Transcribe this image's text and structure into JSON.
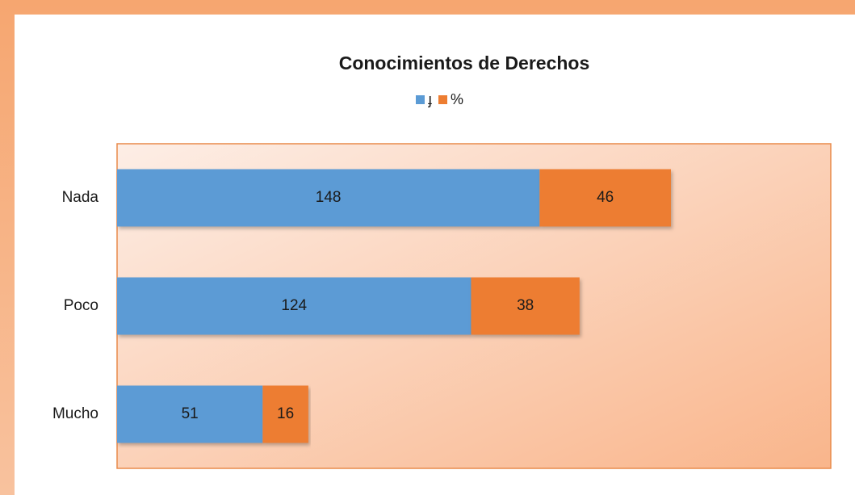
{
  "chart_data": {
    "type": "stacked-bar-horizontal",
    "title": "Conocimientos de Derechos",
    "categories": [
      "Nada",
      "Poco",
      "Mucho"
    ],
    "series": [
      {
        "name": "ɟ",
        "color": "#5b9bd5",
        "values": [
          148,
          124,
          51
        ]
      },
      {
        "name": "%",
        "color": "#ed7d31",
        "values": [
          46,
          38,
          16
        ]
      }
    ],
    "xlim": [
      0,
      250
    ],
    "legend": "top"
  }
}
